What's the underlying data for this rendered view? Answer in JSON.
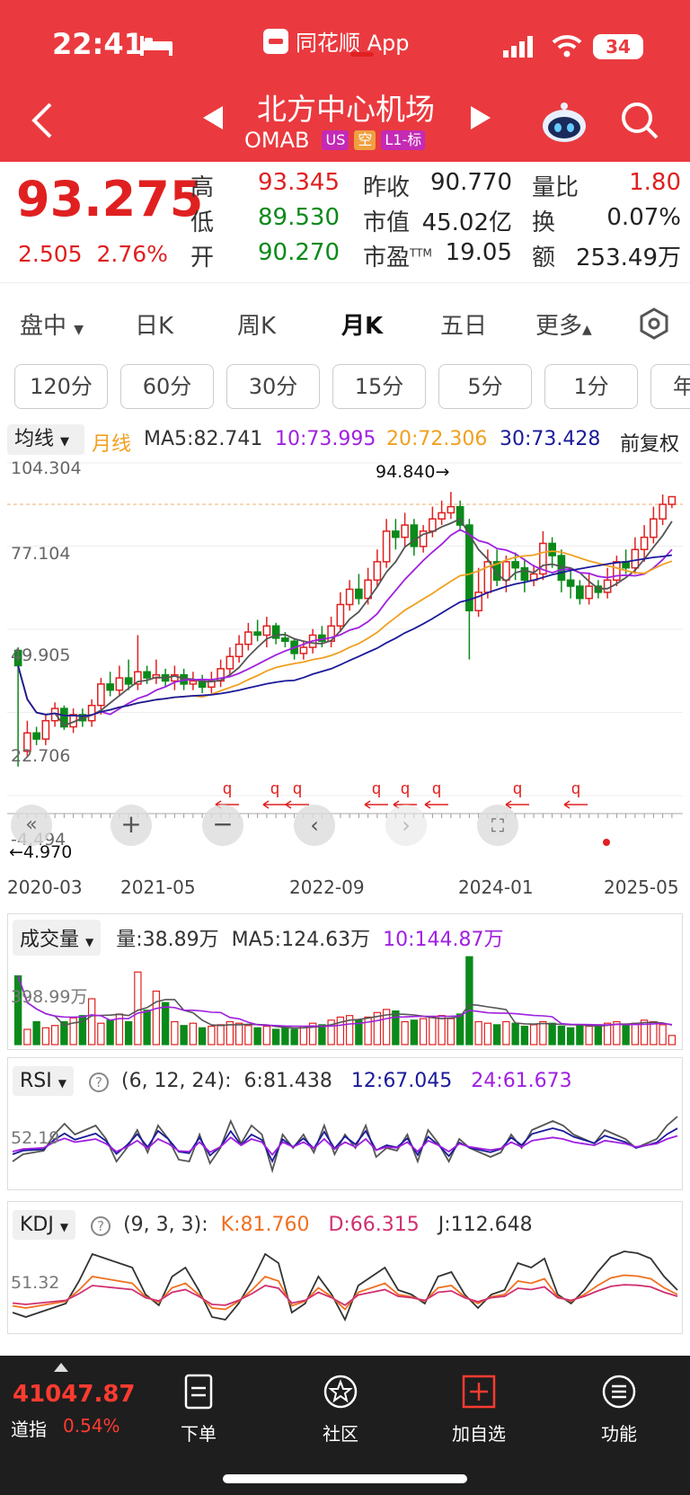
{
  "status": {
    "time": "22:41",
    "app_name": "同花顺 App",
    "battery": "34"
  },
  "header": {
    "name": "北方中心机场",
    "code": "OMAB",
    "badges": [
      "US",
      "空",
      "L1-标"
    ],
    "colors": {
      "bg": "#ea3a3f"
    }
  },
  "quote": {
    "price": "93.275",
    "change": "2.505",
    "change_pct": "2.76%",
    "rows": [
      {
        "l1": "高",
        "v1": "93.345",
        "l2": "昨收",
        "v2": "90.770",
        "l3": "量比",
        "v3": "1.80"
      },
      {
        "l1": "低",
        "v1": "89.530",
        "l2": "市值",
        "v2": "45.02亿",
        "l3": "换",
        "v3": "0.07%"
      },
      {
        "l1": "开",
        "v1": "90.270",
        "l2": "市盈",
        "l2sup": "TTM",
        "v2": "19.05",
        "l3": "额",
        "v3": "253.49万"
      }
    ]
  },
  "tabs": {
    "items": [
      "盘中",
      "日K",
      "周K",
      "月K",
      "五日",
      "更多"
    ],
    "active": "月K"
  },
  "periods": [
    "120分",
    "60分",
    "30分",
    "15分",
    "5分",
    "1分",
    "年"
  ],
  "ma": {
    "selector": "均线",
    "type": "月线",
    "ma5": "MA5:82.741",
    "ma10": "10:73.995",
    "ma20": "20:72.306",
    "ma30": "30:73.428",
    "adjust": "前复权"
  },
  "kchart": {
    "y_labels": [
      "104.304",
      "77.104",
      "49.905",
      "22.706",
      "-4.494"
    ],
    "high_marker": "94.840→",
    "low_marker": "←4.970",
    "x_labels": [
      "2020-03",
      "2021-05",
      "2022-09",
      "2024-01",
      "2025-05"
    ],
    "signal_marks": [
      "q",
      "q",
      "q",
      "q",
      "q",
      "q",
      "q",
      "q",
      "q"
    ]
  },
  "volume": {
    "selector": "成交量",
    "vol": "量:38.89万",
    "ma5": "MA5:124.63万",
    "ma10": "10:144.87万",
    "axis": "398.99万"
  },
  "rsi": {
    "selector": "RSI",
    "params": "(6, 12, 24):",
    "v6": "6:81.438",
    "v12": "12:67.045",
    "v24": "24:61.673",
    "axis": "52.19"
  },
  "kdj": {
    "selector": "KDJ",
    "params": "(9, 3, 3):",
    "k": "K:81.760",
    "d": "D:66.315",
    "j": "J:112.648",
    "axis": "51.32"
  },
  "bottom": {
    "index_value": "41047.87",
    "index_name": "道指",
    "index_pct": "0.54%",
    "items": [
      "下单",
      "社区",
      "加自选",
      "功能"
    ]
  },
  "chart_data": {
    "type": "candlestick",
    "title": "",
    "xlabel": "",
    "ylabel": "",
    "ylim": [
      -4.494,
      104.304
    ],
    "x_ticks": [
      "2020-03",
      "2021-05",
      "2022-09",
      "2024-01",
      "2025-05"
    ],
    "candles": [
      [
        43,
        38,
        44,
        5
      ],
      [
        10,
        16,
        20,
        8
      ],
      [
        16,
        14,
        18,
        12
      ],
      [
        14,
        20,
        22,
        12
      ],
      [
        20,
        24,
        26,
        18
      ],
      [
        24,
        18,
        25,
        17
      ],
      [
        18,
        22,
        24,
        16
      ],
      [
        22,
        20,
        24,
        18
      ],
      [
        20,
        25,
        27,
        18
      ],
      [
        25,
        32,
        34,
        22
      ],
      [
        32,
        30,
        36,
        28
      ],
      [
        30,
        34,
        38,
        28
      ],
      [
        34,
        32,
        40,
        30
      ],
      [
        32,
        36,
        48,
        30
      ],
      [
        36,
        34,
        38,
        32
      ],
      [
        34,
        35,
        40,
        32
      ],
      [
        35,
        33,
        37,
        31
      ],
      [
        33,
        35,
        38,
        30
      ],
      [
        35,
        32,
        37,
        30
      ],
      [
        32,
        33,
        36,
        30
      ],
      [
        33,
        31,
        35,
        29
      ],
      [
        31,
        33,
        36,
        29
      ],
      [
        33,
        37,
        40,
        31
      ],
      [
        37,
        41,
        44,
        35
      ],
      [
        41,
        45,
        48,
        39
      ],
      [
        45,
        49,
        52,
        43
      ],
      [
        49,
        48,
        53,
        46
      ],
      [
        48,
        51,
        54,
        44
      ],
      [
        51,
        47,
        52,
        45
      ],
      [
        47,
        46,
        49,
        44
      ],
      [
        46,
        42,
        47,
        40
      ],
      [
        42,
        44,
        46,
        40
      ],
      [
        44,
        48,
        50,
        42
      ],
      [
        48,
        46,
        51,
        44
      ],
      [
        46,
        51,
        54,
        44
      ],
      [
        51,
        58,
        62,
        49
      ],
      [
        58,
        63,
        66,
        56
      ],
      [
        63,
        60,
        68,
        58
      ],
      [
        60,
        66,
        70,
        58
      ],
      [
        66,
        72,
        76,
        64
      ],
      [
        72,
        82,
        86,
        70
      ],
      [
        82,
        80,
        86,
        76
      ],
      [
        80,
        84,
        88,
        77
      ],
      [
        84,
        77,
        86,
        74
      ],
      [
        77,
        82,
        84,
        75
      ],
      [
        82,
        86,
        90,
        80
      ],
      [
        86,
        88,
        92,
        84
      ],
      [
        88,
        90,
        94.84,
        86
      ],
      [
        90,
        84,
        92,
        82
      ],
      [
        84,
        56,
        86,
        40
      ],
      [
        56,
        62,
        70,
        54
      ],
      [
        62,
        72,
        76,
        60
      ],
      [
        72,
        66,
        76,
        64
      ],
      [
        66,
        72,
        74,
        62
      ],
      [
        72,
        70,
        75,
        66
      ],
      [
        70,
        66,
        73,
        62
      ],
      [
        66,
        68,
        71,
        64
      ],
      [
        68,
        78,
        82,
        66
      ],
      [
        78,
        74,
        80,
        70
      ],
      [
        74,
        66,
        76,
        62
      ],
      [
        66,
        64,
        70,
        60
      ],
      [
        64,
        60,
        66,
        58
      ],
      [
        60,
        64,
        68,
        58
      ],
      [
        64,
        62,
        66,
        60
      ],
      [
        62,
        66,
        70,
        60
      ],
      [
        66,
        72,
        74,
        64
      ],
      [
        72,
        70,
        76,
        68
      ],
      [
        70,
        76,
        80,
        68
      ],
      [
        76,
        80,
        84,
        72
      ],
      [
        80,
        86,
        90,
        78
      ],
      [
        86,
        90.77,
        94,
        84
      ],
      [
        90.77,
        93.275,
        93.345,
        89.53
      ]
    ],
    "ma5_last": 82.741,
    "ma10_last": 73.995,
    "ma20_last": 72.306,
    "ma30_last": 73.428
  }
}
